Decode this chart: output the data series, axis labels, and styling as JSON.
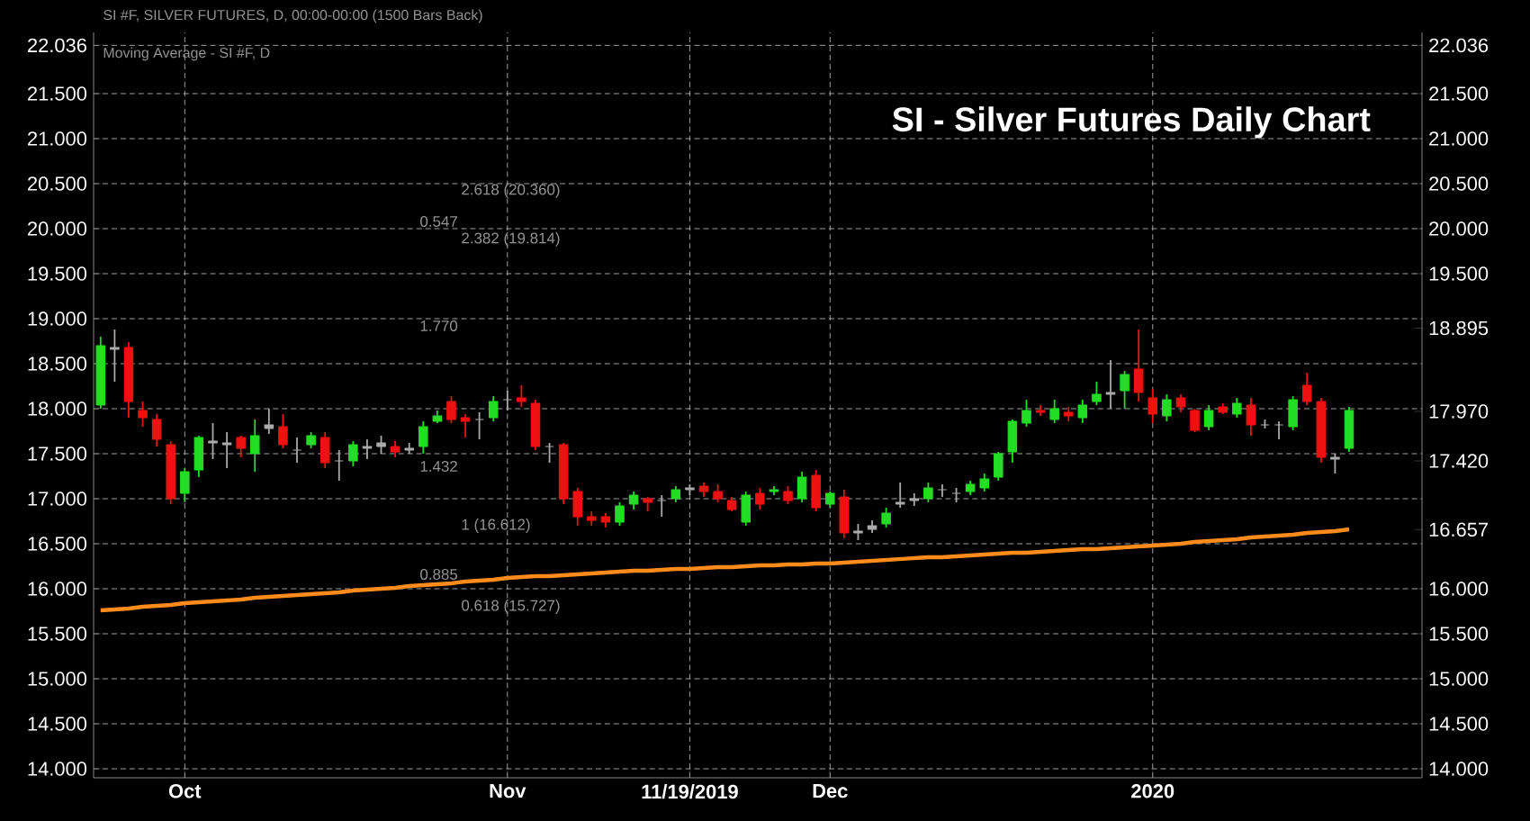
{
  "chart_data": {
    "type": "candlestick",
    "title": "SI - Silver Futures Daily Chart",
    "annotations": [
      "SI #F, SILVER FUTURES, D, 00:00-00:00 (1500 Bars Back)",
      "Moving Average - SI #F, D",
      "2.618 (20.360)",
      "0.547",
      "2.382 (19.814)",
      "1.770",
      "1.432",
      "1 (16.612)",
      "0.885",
      "0.618 (15.727)"
    ],
    "categories": [
      null,
      null,
      null,
      null,
      null,
      null,
      "Oct",
      null,
      null,
      null,
      null,
      null,
      null,
      null,
      null,
      null,
      null,
      null,
      null,
      null,
      null,
      null,
      null,
      null,
      null,
      null,
      null,
      null,
      null,
      "Nov",
      null,
      null,
      null,
      null,
      null,
      null,
      null,
      null,
      null,
      null,
      null,
      null,
      "11/19/2019",
      null,
      null,
      null,
      null,
      null,
      null,
      null,
      null,
      null,
      "Dec",
      null,
      null,
      null,
      null,
      null,
      null,
      null,
      null,
      null,
      null,
      null,
      null,
      null,
      null,
      null,
      null,
      null,
      null,
      null,
      null,
      null,
      null,
      "2020",
      null,
      null,
      null,
      null,
      null,
      null,
      null,
      null,
      null,
      null,
      null,
      null,
      null,
      null
    ],
    "ohlc": [
      [
        18.04,
        18.8,
        18.0,
        18.7
      ],
      [
        18.68,
        18.88,
        18.3,
        18.66
      ],
      [
        18.68,
        18.74,
        17.9,
        18.08
      ],
      [
        17.98,
        18.08,
        17.8,
        17.9
      ],
      [
        17.88,
        17.94,
        17.58,
        17.66
      ],
      [
        17.6,
        17.64,
        16.94,
        17.0
      ],
      [
        17.06,
        17.34,
        16.96,
        17.3
      ],
      [
        17.32,
        17.7,
        17.24,
        17.68
      ],
      [
        17.64,
        17.84,
        17.44,
        17.62
      ],
      [
        17.6,
        17.74,
        17.34,
        17.62
      ],
      [
        17.68,
        17.7,
        17.46,
        17.56
      ],
      [
        17.5,
        17.88,
        17.3,
        17.7
      ],
      [
        17.78,
        18.0,
        17.72,
        17.82
      ],
      [
        17.8,
        17.94,
        17.56,
        17.6
      ],
      [
        17.54,
        17.68,
        17.4,
        17.54
      ],
      [
        17.6,
        17.74,
        17.56,
        17.7
      ],
      [
        17.68,
        17.74,
        17.34,
        17.4
      ],
      [
        17.42,
        17.54,
        17.2,
        17.42
      ],
      [
        17.42,
        17.64,
        17.36,
        17.6
      ],
      [
        17.56,
        17.66,
        17.44,
        17.58
      ],
      [
        17.58,
        17.7,
        17.5,
        17.62
      ],
      [
        17.58,
        17.64,
        17.46,
        17.52
      ],
      [
        17.54,
        17.62,
        17.5,
        17.56
      ],
      [
        17.58,
        17.86,
        17.5,
        17.8
      ],
      [
        17.86,
        17.98,
        17.84,
        17.92
      ],
      [
        18.08,
        18.14,
        17.84,
        17.88
      ],
      [
        17.9,
        17.94,
        17.68,
        17.86
      ],
      [
        17.88,
        17.96,
        17.66,
        17.88
      ],
      [
        17.9,
        18.14,
        17.86,
        18.08
      ],
      [
        18.1,
        18.2,
        17.98,
        18.1
      ],
      [
        18.12,
        18.26,
        18.02,
        18.08
      ],
      [
        18.06,
        18.1,
        17.54,
        17.58
      ],
      [
        17.58,
        17.62,
        17.4,
        17.58
      ],
      [
        17.6,
        17.62,
        16.94,
        17.0
      ],
      [
        17.08,
        17.12,
        16.7,
        16.8
      ],
      [
        16.8,
        16.86,
        16.7,
        16.76
      ],
      [
        16.8,
        16.84,
        16.68,
        16.74
      ],
      [
        16.74,
        16.96,
        16.7,
        16.92
      ],
      [
        16.94,
        17.08,
        16.88,
        17.04
      ],
      [
        17.0,
        17.02,
        16.86,
        16.96
      ],
      [
        16.98,
        17.04,
        16.8,
        16.98
      ],
      [
        17.0,
        17.14,
        16.96,
        17.1
      ],
      [
        17.1,
        17.16,
        17.04,
        17.12
      ],
      [
        17.14,
        17.18,
        17.02,
        17.08
      ],
      [
        17.08,
        17.16,
        16.96,
        17.0
      ],
      [
        16.98,
        17.02,
        16.86,
        16.88
      ],
      [
        16.74,
        17.08,
        16.7,
        17.04
      ],
      [
        17.06,
        17.12,
        16.88,
        16.94
      ],
      [
        17.08,
        17.14,
        17.04,
        17.1
      ],
      [
        17.08,
        17.14,
        16.94,
        16.98
      ],
      [
        17.0,
        17.3,
        16.96,
        17.24
      ],
      [
        17.26,
        17.32,
        16.86,
        16.9
      ],
      [
        16.94,
        17.08,
        16.9,
        17.06
      ],
      [
        17.02,
        17.1,
        16.56,
        16.62
      ],
      [
        16.62,
        16.72,
        16.54,
        16.64
      ],
      [
        16.66,
        16.76,
        16.62,
        16.7
      ],
      [
        16.72,
        16.9,
        16.68,
        16.84
      ],
      [
        16.94,
        17.18,
        16.9,
        16.96
      ],
      [
        16.98,
        17.06,
        16.92,
        17.0
      ],
      [
        17.0,
        17.18,
        16.96,
        17.12
      ],
      [
        17.1,
        17.16,
        17.02,
        17.1
      ],
      [
        17.06,
        17.12,
        16.96,
        17.06
      ],
      [
        17.08,
        17.2,
        17.04,
        17.16
      ],
      [
        17.12,
        17.28,
        17.08,
        17.22
      ],
      [
        17.24,
        17.52,
        17.2,
        17.5
      ],
      [
        17.52,
        17.88,
        17.4,
        17.86
      ],
      [
        17.84,
        18.1,
        17.8,
        17.98
      ],
      [
        17.98,
        18.04,
        17.92,
        17.96
      ],
      [
        17.88,
        18.1,
        17.84,
        18.0
      ],
      [
        17.96,
        18.02,
        17.86,
        17.92
      ],
      [
        17.9,
        18.1,
        17.84,
        18.04
      ],
      [
        18.08,
        18.3,
        18.04,
        18.16
      ],
      [
        18.16,
        18.54,
        18.0,
        18.18
      ],
      [
        18.2,
        18.42,
        18.0,
        18.38
      ],
      [
        18.44,
        18.88,
        18.08,
        18.18
      ],
      [
        18.12,
        18.22,
        17.84,
        17.94
      ],
      [
        17.92,
        18.16,
        17.86,
        18.1
      ],
      [
        18.12,
        18.16,
        17.96,
        18.02
      ],
      [
        17.98,
        18.0,
        17.74,
        17.76
      ],
      [
        17.8,
        18.04,
        17.76,
        17.98
      ],
      [
        18.02,
        18.06,
        17.94,
        17.96
      ],
      [
        17.94,
        18.12,
        17.9,
        18.06
      ],
      [
        18.04,
        18.12,
        17.7,
        17.82
      ],
      [
        17.82,
        17.88,
        17.78,
        17.82
      ],
      [
        17.82,
        17.86,
        17.66,
        17.82
      ],
      [
        17.8,
        18.14,
        17.76,
        18.1
      ],
      [
        18.26,
        18.4,
        18.04,
        18.08
      ],
      [
        18.08,
        18.12,
        17.4,
        17.46
      ],
      [
        17.46,
        17.5,
        17.28,
        17.44
      ],
      [
        17.56,
        18.02,
        17.52,
        17.98
      ]
    ],
    "colors": [
      "#22dd22",
      "#aaaaaa",
      "#ee1111",
      "#ee1111",
      "#ee1111",
      "#ee1111",
      "#22dd22",
      "#22dd22",
      "#aaaaaa",
      "#aaaaaa",
      "#ee1111",
      "#22dd22",
      "#aaaaaa",
      "#ee1111",
      "#aaaaaa",
      "#22dd22",
      "#ee1111",
      "#aaaaaa",
      "#22dd22",
      "#aaaaaa",
      "#aaaaaa",
      "#ee1111",
      "#aaaaaa",
      "#22dd22",
      "#22dd22",
      "#ee1111",
      "#ee1111",
      "#aaaaaa",
      "#22dd22",
      "#aaaaaa",
      "#ee1111",
      "#ee1111",
      "#aaaaaa",
      "#ee1111",
      "#ee1111",
      "#ee1111",
      "#ee1111",
      "#22dd22",
      "#22dd22",
      "#ee1111",
      "#aaaaaa",
      "#22dd22",
      "#aaaaaa",
      "#ee1111",
      "#ee1111",
      "#ee1111",
      "#22dd22",
      "#ee1111",
      "#22dd22",
      "#ee1111",
      "#22dd22",
      "#ee1111",
      "#22dd22",
      "#ee1111",
      "#aaaaaa",
      "#aaaaaa",
      "#22dd22",
      "#aaaaaa",
      "#aaaaaa",
      "#22dd22",
      "#aaaaaa",
      "#aaaaaa",
      "#22dd22",
      "#22dd22",
      "#22dd22",
      "#22dd22",
      "#22dd22",
      "#ee1111",
      "#22dd22",
      "#ee1111",
      "#22dd22",
      "#22dd22",
      "#aaaaaa",
      "#22dd22",
      "#ee1111",
      "#ee1111",
      "#22dd22",
      "#ee1111",
      "#ee1111",
      "#22dd22",
      "#ee1111",
      "#22dd22",
      "#ee1111",
      "#aaaaaa",
      "#aaaaaa",
      "#22dd22",
      "#ee1111",
      "#ee1111",
      "#aaaaaa",
      "#22dd22"
    ],
    "series": [
      {
        "type": "line",
        "color": "#ff8c1a",
        "values": [
          15.76,
          15.77,
          15.78,
          15.8,
          15.81,
          15.82,
          15.84,
          15.85,
          15.86,
          15.87,
          15.88,
          15.9,
          15.91,
          15.92,
          15.93,
          15.94,
          15.95,
          15.96,
          15.98,
          15.99,
          16.0,
          16.01,
          16.03,
          16.04,
          16.05,
          16.06,
          16.08,
          16.09,
          16.1,
          16.12,
          16.13,
          16.14,
          16.14,
          16.15,
          16.16,
          16.17,
          16.18,
          16.19,
          16.2,
          16.2,
          16.21,
          16.22,
          16.22,
          16.23,
          16.24,
          16.24,
          16.25,
          16.26,
          16.26,
          16.27,
          16.27,
          16.28,
          16.28,
          16.29,
          16.3,
          16.31,
          16.32,
          16.33,
          16.34,
          16.35,
          16.35,
          16.36,
          16.37,
          16.38,
          16.39,
          16.4,
          16.4,
          16.41,
          16.42,
          16.43,
          16.44,
          16.44,
          16.45,
          16.46,
          16.47,
          16.48,
          16.49,
          16.5,
          16.52,
          16.53,
          16.54,
          16.55,
          16.57,
          16.58,
          16.59,
          16.6,
          16.62,
          16.63,
          16.64,
          16.66
        ]
      }
    ],
    "ylim": [
      13.9,
      22.18
    ],
    "yticks": [
      {
        "value": 14,
        "label": "14.000"
      },
      {
        "value": 14.5,
        "label": "14.500"
      },
      {
        "value": 15,
        "label": "15.000"
      },
      {
        "value": 15.5,
        "label": "15.500"
      },
      {
        "value": 16,
        "label": "16.000"
      },
      {
        "value": 16.5,
        "label": "16.500"
      },
      {
        "value": 17,
        "label": "17.000"
      },
      {
        "value": 17.5,
        "label": "17.500"
      },
      {
        "value": 18,
        "label": "18.000"
      },
      {
        "value": 18.5,
        "label": "18.500"
      },
      {
        "value": 19,
        "label": "19.000"
      },
      {
        "value": 19.5,
        "label": "19.500"
      },
      {
        "value": 20,
        "label": "20.000"
      },
      {
        "value": 20.5,
        "label": "20.500"
      },
      {
        "value": 21,
        "label": "21.000"
      },
      {
        "value": 21.5,
        "label": "21.500"
      },
      22.036
    ],
    "y2lim": [
      13.9,
      22.18
    ],
    "y2ticks": [
      {
        "value": 14,
        "label": "14.000"
      },
      {
        "value": 14.5,
        "label": "14.500"
      },
      {
        "value": 15,
        "label": "15.000"
      },
      {
        "value": 15.5,
        "label": "15.500"
      },
      {
        "value": 16,
        "label": "16.000"
      },
      16.657,
      {
        "value": 17.42,
        "label": "17.420"
      },
      {
        "value": 17.97,
        "label": "17.970"
      },
      18.895,
      {
        "value": 19.5,
        "label": "19.500"
      },
      {
        "value": 20,
        "label": "20.000"
      },
      {
        "value": 20.5,
        "label": "20.500"
      },
      {
        "value": 21,
        "label": "21.000"
      },
      {
        "value": 21.5,
        "label": "21.500"
      },
      22.036
    ],
    "grid": true
  }
}
